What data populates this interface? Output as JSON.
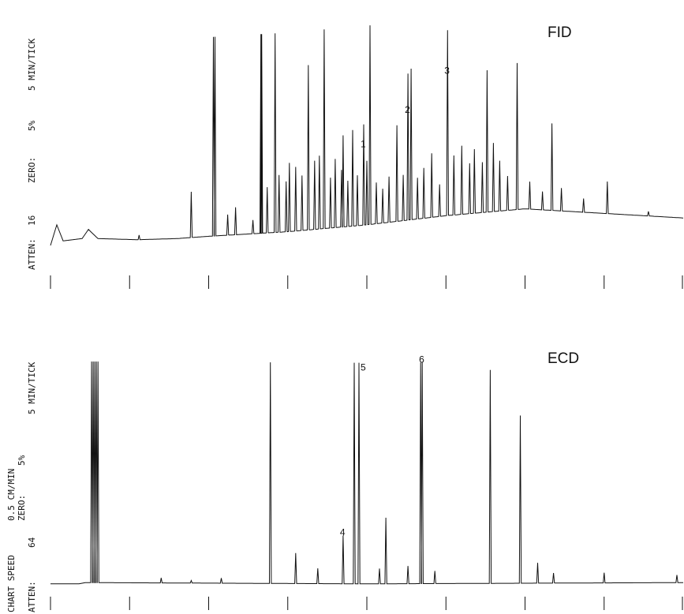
{
  "chart_data": [
    {
      "type": "line",
      "title": "FID",
      "side_annotations": [
        "ATTEN:",
        "16",
        "ZERO:",
        "5%",
        "5 MIN/TICK"
      ],
      "x_unit": "min",
      "tick_interval_min": 5,
      "xlim": [
        0,
        40
      ],
      "ylim": [
        0,
        100
      ],
      "peak_labels": [
        {
          "label": "1",
          "x": 19.8,
          "y": 53
        },
        {
          "label": "2",
          "x": 22.6,
          "y": 68
        },
        {
          "label": "3",
          "x": 25.1,
          "y": 85
        }
      ],
      "baseline": [
        {
          "x": 0.0,
          "y": 10
        },
        {
          "x": 0.4,
          "y": 19
        },
        {
          "x": 0.8,
          "y": 12
        },
        {
          "x": 2.0,
          "y": 13
        },
        {
          "x": 2.4,
          "y": 17
        },
        {
          "x": 3.0,
          "y": 13
        },
        {
          "x": 5.5,
          "y": 12.5
        },
        {
          "x": 8.0,
          "y": 13
        },
        {
          "x": 10.0,
          "y": 14
        },
        {
          "x": 15.0,
          "y": 16
        },
        {
          "x": 20.0,
          "y": 19
        },
        {
          "x": 25.0,
          "y": 23
        },
        {
          "x": 30.0,
          "y": 26
        },
        {
          "x": 35.0,
          "y": 24
        },
        {
          "x": 40.0,
          "y": 22
        }
      ],
      "peaks": [
        {
          "x": 5.6,
          "h": 2
        },
        {
          "x": 8.9,
          "h": 20
        },
        {
          "x": 10.3,
          "h": 87
        },
        {
          "x": 10.4,
          "h": 87
        },
        {
          "x": 11.2,
          "h": 9
        },
        {
          "x": 11.7,
          "h": 12
        },
        {
          "x": 12.8,
          "h": 6
        },
        {
          "x": 13.3,
          "h": 87
        },
        {
          "x": 13.35,
          "h": 87
        },
        {
          "x": 13.7,
          "h": 20
        },
        {
          "x": 14.2,
          "h": 87
        },
        {
          "x": 14.45,
          "h": 25
        },
        {
          "x": 14.9,
          "h": 22
        },
        {
          "x": 15.1,
          "h": 30
        },
        {
          "x": 15.5,
          "h": 28
        },
        {
          "x": 15.9,
          "h": 24
        },
        {
          "x": 16.3,
          "h": 72
        },
        {
          "x": 16.7,
          "h": 30
        },
        {
          "x": 17.0,
          "h": 32
        },
        {
          "x": 17.3,
          "h": 87
        },
        {
          "x": 17.7,
          "h": 22
        },
        {
          "x": 18.0,
          "h": 30
        },
        {
          "x": 18.4,
          "h": 25
        },
        {
          "x": 18.5,
          "h": 40
        },
        {
          "x": 18.8,
          "h": 20
        },
        {
          "x": 19.1,
          "h": 42
        },
        {
          "x": 19.4,
          "h": 22
        },
        {
          "x": 19.8,
          "h": 44
        },
        {
          "x": 20.0,
          "h": 28
        },
        {
          "x": 20.2,
          "h": 87
        },
        {
          "x": 20.6,
          "h": 18
        },
        {
          "x": 21.0,
          "h": 15
        },
        {
          "x": 21.4,
          "h": 20
        },
        {
          "x": 21.9,
          "h": 42
        },
        {
          "x": 22.3,
          "h": 20
        },
        {
          "x": 22.6,
          "h": 64
        },
        {
          "x": 22.8,
          "h": 66
        },
        {
          "x": 23.2,
          "h": 18
        },
        {
          "x": 23.6,
          "h": 22
        },
        {
          "x": 24.1,
          "h": 28
        },
        {
          "x": 24.6,
          "h": 14
        },
        {
          "x": 25.1,
          "h": 81
        },
        {
          "x": 25.5,
          "h": 26
        },
        {
          "x": 26.0,
          "h": 30
        },
        {
          "x": 26.5,
          "h": 22
        },
        {
          "x": 26.8,
          "h": 28
        },
        {
          "x": 27.3,
          "h": 22
        },
        {
          "x": 27.6,
          "h": 62
        },
        {
          "x": 28.0,
          "h": 30
        },
        {
          "x": 28.4,
          "h": 22
        },
        {
          "x": 28.9,
          "h": 15
        },
        {
          "x": 29.5,
          "h": 64
        },
        {
          "x": 30.3,
          "h": 12
        },
        {
          "x": 31.1,
          "h": 8
        },
        {
          "x": 31.7,
          "h": 38
        },
        {
          "x": 32.3,
          "h": 10
        },
        {
          "x": 33.7,
          "h": 6
        },
        {
          "x": 35.2,
          "h": 14
        },
        {
          "x": 37.8,
          "h": 2
        }
      ]
    },
    {
      "type": "line",
      "title": "ECD",
      "side_annotations": [
        "ATTEN:",
        "64",
        "CHART SPEED",
        "ZERO:",
        "0.5 CM/MIN",
        "5%",
        "5 MIN/TICK"
      ],
      "x_unit": "min",
      "tick_interval_min": 5,
      "xlim": [
        0,
        40
      ],
      "ylim": [
        0,
        100
      ],
      "peak_labels": [
        {
          "label": "4",
          "x": 18.5,
          "y": 29
        },
        {
          "label": "5",
          "x": 19.8,
          "y": 94
        },
        {
          "label": "6",
          "x": 23.5,
          "y": 97
        }
      ],
      "baseline": [
        {
          "x": 0.0,
          "y": 10
        },
        {
          "x": 1.8,
          "y": 10
        },
        {
          "x": 2.2,
          "y": 10.5
        },
        {
          "x": 20.0,
          "y": 10
        },
        {
          "x": 40.0,
          "y": 10.5
        }
      ],
      "peaks": [
        {
          "x": 2.6,
          "h": 87
        },
        {
          "x": 2.7,
          "h": 87
        },
        {
          "x": 2.8,
          "h": 87
        },
        {
          "x": 2.9,
          "h": 87
        },
        {
          "x": 3.0,
          "h": 87
        },
        {
          "x": 7.0,
          "h": 2
        },
        {
          "x": 8.9,
          "h": 1
        },
        {
          "x": 10.8,
          "h": 2
        },
        {
          "x": 13.9,
          "h": 87
        },
        {
          "x": 15.5,
          "h": 12
        },
        {
          "x": 16.9,
          "h": 6
        },
        {
          "x": 18.5,
          "h": 19
        },
        {
          "x": 19.2,
          "h": 87
        },
        {
          "x": 19.5,
          "h": 87
        },
        {
          "x": 20.8,
          "h": 6
        },
        {
          "x": 21.2,
          "h": 26
        },
        {
          "x": 22.6,
          "h": 7
        },
        {
          "x": 23.4,
          "h": 87
        },
        {
          "x": 23.5,
          "h": 87
        },
        {
          "x": 24.3,
          "h": 5
        },
        {
          "x": 27.8,
          "h": 84
        },
        {
          "x": 29.7,
          "h": 66
        },
        {
          "x": 30.8,
          "h": 8
        },
        {
          "x": 31.8,
          "h": 4
        },
        {
          "x": 35.0,
          "h": 4
        },
        {
          "x": 39.6,
          "h": 3
        }
      ]
    }
  ]
}
